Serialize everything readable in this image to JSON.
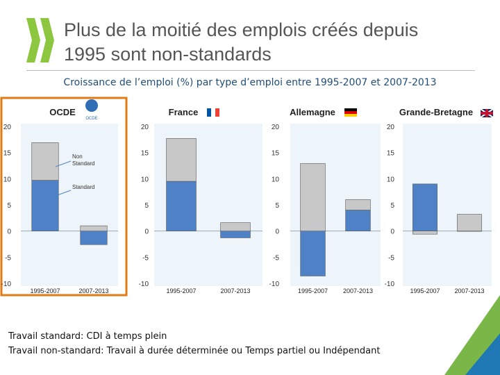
{
  "slide": {
    "title_line1": "Plus de la moitié des emplois créés depuis",
    "title_line2": "1995 sont non-standards",
    "subtitle": "Croissance de l’emploi (%) par type d’emploi entre 1995-2007 et 2007-2013",
    "note_line1": "Travail standard: CDI à temps plein",
    "note_line2": "Travail non-standard: Travail à durée déterminée ou Temps partiel ou Indépendant"
  },
  "colors": {
    "standard": "#4f81c7",
    "non_standard": "#c8c8c8",
    "panel_bg": "#eef5fa",
    "highlight_border": "#e07b16",
    "logo_green": "#8dc63f",
    "corner_green": "#7ab648",
    "corner_blue": "#1f77b4"
  },
  "chart_data": [
    {
      "type": "bar",
      "stacked": true,
      "title": "OCDE",
      "badge": "OCDE",
      "categories": [
        "1995-2007",
        "2007-2013"
      ],
      "series": [
        {
          "name": "Standard",
          "values": [
            9.7,
            -2.6
          ]
        },
        {
          "name": "Non Standard",
          "values": [
            7.2,
            1.0
          ]
        }
      ],
      "ylim": [
        -10,
        20
      ],
      "yticks": [
        "20",
        "15",
        "10",
        "5",
        "0",
        "-5",
        "-10"
      ],
      "annotations": [
        "Non",
        "Standard",
        "Standard"
      ]
    },
    {
      "type": "bar",
      "stacked": true,
      "title": "France",
      "flag": "fr",
      "categories": [
        "1995-2007",
        "2007-2013"
      ],
      "series": [
        {
          "name": "Standard",
          "values": [
            9.5,
            -1.3
          ]
        },
        {
          "name": "Non Standard",
          "values": [
            8.2,
            1.6
          ]
        }
      ],
      "ylim": [
        -10,
        20
      ],
      "yticks": [
        "20",
        "15",
        "10",
        "5",
        "0",
        "-5",
        "-10"
      ]
    },
    {
      "type": "bar",
      "stacked": true,
      "title": "Allemagne",
      "flag": "de",
      "categories": [
        "1995-2007",
        "2007-2013"
      ],
      "series": [
        {
          "name": "Standard",
          "values": [
            -8.6,
            4.0
          ]
        },
        {
          "name": "Non Standard",
          "values": [
            12.9,
            2.0
          ]
        }
      ],
      "ylim": [
        -10,
        20
      ],
      "yticks": [
        "20",
        "15",
        "10",
        "5",
        "0",
        "-5",
        "-10"
      ]
    },
    {
      "type": "bar",
      "stacked": true,
      "title": "Grande-Bretagne",
      "flag": "gb",
      "categories": [
        "1995-2007",
        "2007-2013"
      ],
      "series": [
        {
          "name": "Standard",
          "values": [
            9.0,
            0.0
          ]
        },
        {
          "name": "Non Standard",
          "values": [
            -0.6,
            3.2
          ]
        }
      ],
      "ylim": [
        -10,
        20
      ],
      "yticks": [
        "20",
        "15",
        "10",
        "5",
        "0",
        "-5",
        "-10"
      ]
    }
  ]
}
